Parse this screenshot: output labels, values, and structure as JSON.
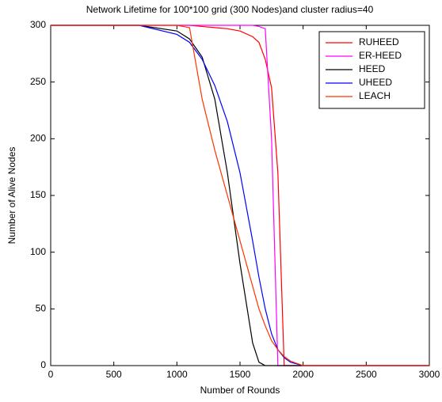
{
  "chart_data": {
    "type": "line",
    "title": "Network Lifetime for 100*100 grid (300 Nodes)and cluster radius=40",
    "x_label": "Number of Rounds",
    "y_label": "Number of Alive Nodes",
    "x": [
      0,
      500,
      700,
      1000,
      1100,
      1200,
      1300,
      1400,
      1500,
      1600,
      1650,
      1700,
      1750,
      1800,
      1850,
      1900,
      2000,
      3000
    ],
    "series": [
      {
        "name": "RUHEED",
        "color": "#ff0000",
        "values": [
          300,
          300,
          300,
          300,
          300,
          299,
          298,
          297,
          295,
          290,
          285,
          270,
          245,
          170,
          0,
          0,
          0,
          0
        ]
      },
      {
        "name": "ER-HEED",
        "color": "#ff00ff",
        "values": [
          300,
          300,
          300,
          300,
          300,
          300,
          300,
          300,
          300,
          300,
          299,
          297,
          200,
          0,
          0,
          0,
          0,
          0
        ]
      },
      {
        "name": "HEED",
        "color": "#000000",
        "values": [
          300,
          300,
          300,
          295,
          288,
          272,
          235,
          170,
          90,
          20,
          3,
          0,
          0,
          0,
          0,
          0,
          0,
          0
        ]
      },
      {
        "name": "UHEED",
        "color": "#0000ff",
        "values": [
          300,
          300,
          300,
          292,
          285,
          270,
          247,
          215,
          170,
          110,
          78,
          50,
          28,
          14,
          7,
          3,
          0,
          0
        ]
      },
      {
        "name": "LEACH",
        "color": "#ff3300",
        "values": [
          300,
          300,
          300,
          300,
          298,
          235,
          190,
          150,
          110,
          70,
          50,
          35,
          22,
          14,
          8,
          4,
          0,
          0
        ]
      }
    ],
    "xlim": [
      0,
      3000
    ],
    "xticks": [
      0,
      500,
      1000,
      1500,
      2000,
      2500,
      3000
    ],
    "ylim": [
      0,
      300
    ],
    "yticks": [
      0,
      50,
      100,
      150,
      200,
      250,
      300
    ],
    "legend": "top-right"
  }
}
